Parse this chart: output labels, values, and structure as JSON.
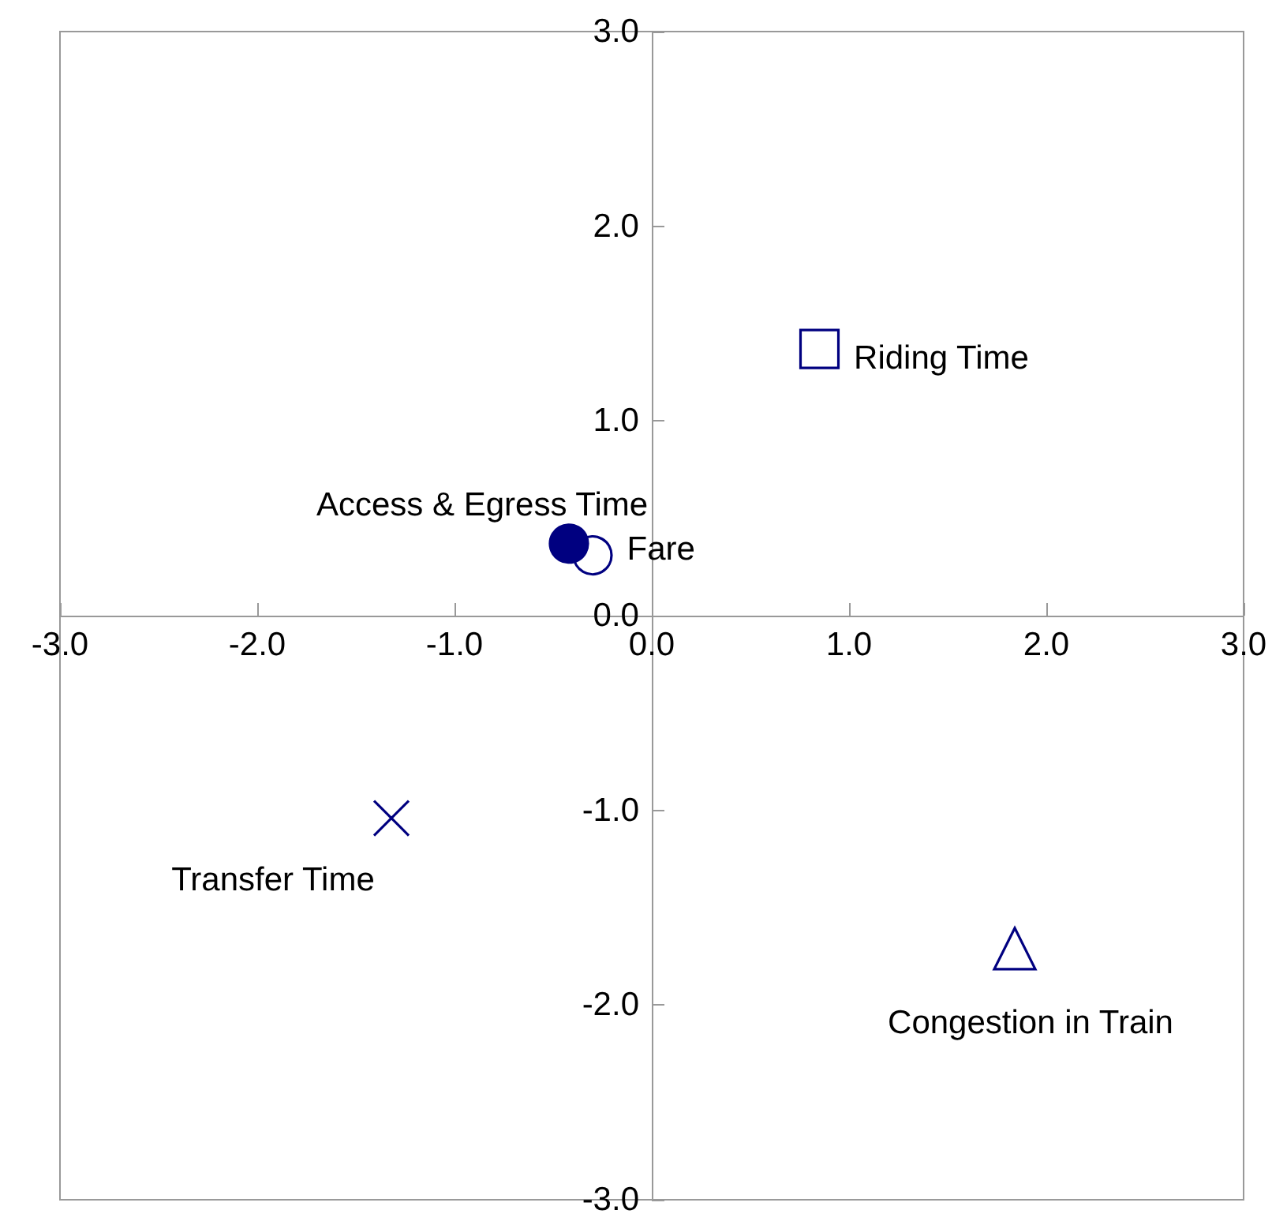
{
  "chart_data": {
    "type": "scatter",
    "grid": false,
    "legend": false,
    "xlim": [
      -3,
      3
    ],
    "ylim": [
      -3,
      3
    ],
    "xticks": [
      {
        "value": -3,
        "label": "-3.0"
      },
      {
        "value": -2,
        "label": "-2.0"
      },
      {
        "value": -1,
        "label": "-1.0"
      },
      {
        "value": 0,
        "label": "0.0"
      },
      {
        "value": 1,
        "label": "1.0"
      },
      {
        "value": 2,
        "label": "2.0"
      },
      {
        "value": 3,
        "label": "3.0"
      }
    ],
    "yticks": [
      {
        "value": -3,
        "label": "-3.0"
      },
      {
        "value": -2,
        "label": "-2.0"
      },
      {
        "value": -1,
        "label": "-1.0"
      },
      {
        "value": 0,
        "label": "0.0"
      },
      {
        "value": 1,
        "label": "1.0"
      },
      {
        "value": 2,
        "label": "2.0"
      },
      {
        "value": 3,
        "label": "3.0"
      }
    ],
    "series": [
      {
        "name": "Riding Time",
        "color": "#000080",
        "marker": "square",
        "x": [
          0.85
        ],
        "values": [
          1.37
        ]
      },
      {
        "name": "Access & Egress Time",
        "color": "#000080",
        "marker": "circle",
        "x": [
          -0.42
        ],
        "values": [
          0.37
        ]
      },
      {
        "name": "Fare",
        "color": "#000080",
        "marker": "circle",
        "x": [
          -0.3
        ],
        "values": [
          0.31
        ]
      },
      {
        "name": "Transfer Time",
        "color": "#000080",
        "marker": "cross",
        "x": [
          -1.32
        ],
        "values": [
          -1.04
        ]
      },
      {
        "name": "Congestion in Train",
        "color": "#000080",
        "marker": "triangle",
        "x": [
          1.84
        ],
        "values": [
          -1.71
        ]
      }
    ]
  }
}
